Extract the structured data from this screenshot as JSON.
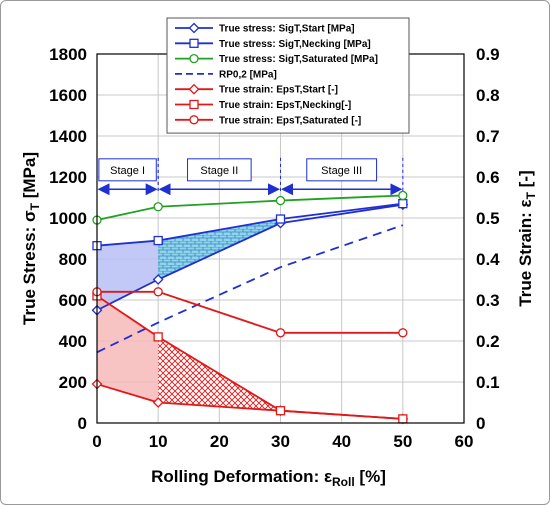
{
  "chart_data": {
    "type": "line",
    "x_label_prefix": "Rolling Deformation: ε",
    "x_label_sub": "Roll",
    "x_label_suffix": " [%]",
    "y_label_prefix": "True Stress: σ",
    "y_label_sub": "T",
    "y_label_suffix": " [MPa]",
    "y2_label_prefix": "True Strain: ε",
    "y2_label_sub": "T",
    "y2_label_suffix": " [-]",
    "xlim": [
      0,
      60
    ],
    "ylim": [
      0,
      1800
    ],
    "y2lim": [
      0,
      0.9
    ],
    "x_ticks": [
      "0",
      "10",
      "20",
      "30",
      "40",
      "50",
      "60"
    ],
    "y_ticks": [
      "0",
      "200",
      "400",
      "600",
      "800",
      "1000",
      "1200",
      "1400",
      "1600",
      "1800"
    ],
    "y2_ticks": [
      "0",
      "0.1",
      "0.2",
      "0.3",
      "0.4",
      "0.5",
      "0.6",
      "0.7",
      "0.8",
      "0.9"
    ],
    "grid": true,
    "legend_position": "top-center",
    "series": [
      {
        "name": "True stress: SigT,Start [MPa]",
        "axis": "left",
        "color": "#1f2fd0",
        "marker": "diamond",
        "dash": "solid",
        "x": [
          0,
          10,
          30,
          50
        ],
        "y": [
          550,
          700,
          975,
          1065
        ]
      },
      {
        "name": "True stress: SigT,Necking [MPa]",
        "axis": "left",
        "color": "#1f2fd0",
        "marker": "square",
        "dash": "solid",
        "x": [
          0,
          10,
          30,
          50
        ],
        "y": [
          865,
          890,
          995,
          1070
        ]
      },
      {
        "name": "True stress: SigT,Saturated [MPa]",
        "axis": "left",
        "color": "#22a022",
        "marker": "circle",
        "dash": "solid",
        "x": [
          0,
          10,
          30,
          50
        ],
        "y": [
          990,
          1055,
          1085,
          1110
        ]
      },
      {
        "name": "RP0,2 [MPa]",
        "axis": "left",
        "color": "#1f2fd0",
        "marker": "none",
        "dash": "dashed",
        "x": [
          0,
          10,
          30,
          50
        ],
        "y": [
          345,
          490,
          760,
          965
        ]
      },
      {
        "name": "True strain: EpsT,Start [-]",
        "axis": "right",
        "color": "#e01818",
        "marker": "diamond",
        "dash": "solid",
        "x": [
          0,
          10,
          30,
          50
        ],
        "y": [
          0.095,
          0.05,
          0.03,
          0.01
        ]
      },
      {
        "name": "True strain: EpsT,Necking[-]",
        "axis": "right",
        "color": "#e01818",
        "marker": "square",
        "dash": "solid",
        "x": [
          0,
          10,
          30,
          50
        ],
        "y": [
          0.31,
          0.21,
          0.03,
          0.01
        ]
      },
      {
        "name": "True strain: EpsT,Saturated [-]",
        "axis": "right",
        "color": "#e01818",
        "marker": "circle",
        "dash": "solid",
        "x": [
          0,
          10,
          30,
          50
        ],
        "y": [
          0.32,
          0.32,
          0.22,
          0.22
        ]
      }
    ],
    "stages": [
      {
        "label": "Stage I",
        "x_start": 0,
        "x_end": 10
      },
      {
        "label": "Stage II",
        "x_start": 10,
        "x_end": 30
      },
      {
        "label": "Stage III",
        "x_start": 30,
        "x_end": 50
      }
    ],
    "stage_arrow_y": 1140,
    "stage_label_y": 1235,
    "shaded_regions": [
      {
        "axis": "left",
        "fill": "#b8c0f4",
        "pattern": "none",
        "points": [
          [
            0,
            865
          ],
          [
            10,
            890
          ],
          [
            10,
            700
          ],
          [
            0,
            550
          ]
        ]
      },
      {
        "axis": "left",
        "fill": "#7fd0e8",
        "pattern": "brick",
        "points": [
          [
            10,
            890
          ],
          [
            30,
            995
          ],
          [
            30,
            975
          ],
          [
            10,
            700
          ]
        ]
      },
      {
        "axis": "right",
        "fill": "#f7b8b8",
        "pattern": "none",
        "points": [
          [
            0,
            0.31
          ],
          [
            10,
            0.21
          ],
          [
            10,
            0.05
          ],
          [
            0,
            0.095
          ]
        ]
      },
      {
        "axis": "right",
        "fill": "#e01818",
        "pattern": "crosshatch",
        "points": [
          [
            10,
            0.21
          ],
          [
            30,
            0.03
          ],
          [
            10,
            0.05
          ]
        ]
      }
    ]
  }
}
